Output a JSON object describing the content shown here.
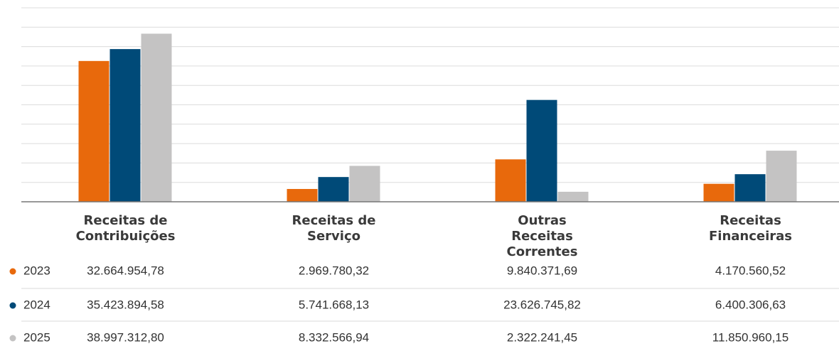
{
  "chart_data": {
    "type": "bar",
    "categories": [
      "Receitas de Contribuições",
      "Receitas de Serviço",
      "Outras Receitas Correntes",
      "Receitas Financeiras"
    ],
    "series": [
      {
        "name": "2023",
        "color": "#e8690c",
        "values": [
          32664954.78,
          2969780.32,
          9840371.69,
          4170560.52
        ],
        "value_labels": [
          "32.664.954,78",
          "2.969.780,32",
          "9.840.371,69",
          "4.170.560,52"
        ]
      },
      {
        "name": "2024",
        "color": "#004a78",
        "values": [
          35423894.58,
          5741668.13,
          23626745.82,
          6400306.63
        ],
        "value_labels": [
          "35.423.894,58",
          "5.741.668,13",
          "23.626.745,82",
          "6.400.306,63"
        ]
      },
      {
        "name": "2025",
        "color": "#c4c3c3",
        "values": [
          38997312.8,
          8332566.94,
          2322241.45,
          11850960.15
        ],
        "value_labels": [
          "38.997.312,80",
          "8.332.566,94",
          "2.322.241,45",
          "11.850.960,15"
        ]
      }
    ],
    "ylim": [
      0,
      45000000
    ],
    "grid": true
  }
}
